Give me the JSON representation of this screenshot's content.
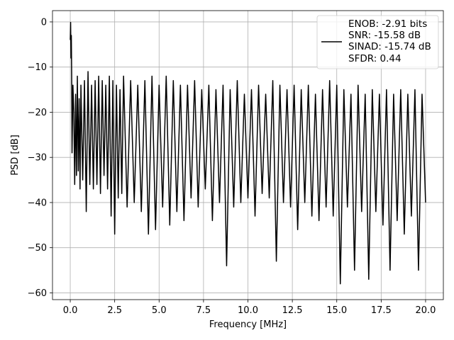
{
  "chart_data": {
    "type": "line",
    "xlabel": "Frequency [MHz]",
    "ylabel": "PSD [dB]",
    "xlim": [
      -1.0,
      21.0
    ],
    "ylim": [
      -61.5,
      2.5
    ],
    "grid": true,
    "legend_placement": "top-right",
    "x_ticks": [
      0.0,
      2.5,
      5.0,
      7.5,
      10.0,
      12.5,
      15.0,
      17.5,
      20.0
    ],
    "x_tick_labels": [
      "0.0",
      "2.5",
      "5.0",
      "7.5",
      "10.0",
      "12.5",
      "15.0",
      "17.5",
      "20.0"
    ],
    "y_ticks": [
      0,
      -10,
      -20,
      -30,
      -40,
      -50,
      -60
    ],
    "y_tick_labels": [
      "0",
      "−10",
      "−20",
      "−30",
      "−40",
      "−50",
      "−60"
    ],
    "series": [
      {
        "color": "#000000",
        "legend_lines": [
          "ENOB: -2.91 bits",
          "SNR: -15.58 dB",
          "SINAD: -15.74 dB",
          "SFDR: 0.44"
        ],
        "x": [
          0.0,
          0.02,
          0.04,
          0.06,
          0.08,
          0.1,
          0.15,
          0.2,
          0.25,
          0.3,
          0.35,
          0.4,
          0.45,
          0.5,
          0.55,
          0.6,
          0.7,
          0.8,
          0.9,
          1.0,
          1.1,
          1.2,
          1.3,
          1.4,
          1.5,
          1.6,
          1.7,
          1.8,
          1.9,
          2.0,
          2.1,
          2.2,
          2.3,
          2.4,
          2.5,
          2.6,
          2.7,
          2.8,
          2.9,
          3.0,
          3.2,
          3.4,
          3.6,
          3.8,
          4.0,
          4.2,
          4.4,
          4.6,
          4.8,
          5.0,
          5.2,
          5.4,
          5.6,
          5.8,
          6.0,
          6.2,
          6.4,
          6.6,
          6.8,
          7.0,
          7.2,
          7.4,
          7.6,
          7.8,
          8.0,
          8.2,
          8.4,
          8.6,
          8.8,
          9.0,
          9.2,
          9.4,
          9.6,
          9.8,
          10.0,
          10.2,
          10.4,
          10.6,
          10.8,
          11.0,
          11.2,
          11.4,
          11.6,
          11.8,
          12.0,
          12.2,
          12.4,
          12.6,
          12.8,
          13.0,
          13.2,
          13.4,
          13.6,
          13.8,
          14.0,
          14.2,
          14.4,
          14.6,
          14.8,
          15.0,
          15.2,
          15.4,
          15.6,
          15.8,
          16.0,
          16.2,
          16.4,
          16.6,
          16.8,
          17.0,
          17.2,
          17.4,
          17.6,
          17.8,
          18.0,
          18.2,
          18.4,
          18.6,
          18.8,
          19.0,
          19.2,
          19.4,
          19.6,
          19.8,
          20.0
        ],
        "y": [
          -4.0,
          -0.1,
          -8.0,
          -3.0,
          -12.0,
          -29.0,
          -14.0,
          -20.0,
          -36.0,
          -16.0,
          -34.0,
          -12.0,
          -33.0,
          -17.0,
          -37.0,
          -14.0,
          -35.0,
          -13.0,
          -42.0,
          -11.0,
          -36.0,
          -14.0,
          -37.0,
          -13.0,
          -36.0,
          -12.0,
          -38.0,
          -13.0,
          -34.0,
          -14.0,
          -37.0,
          -12.0,
          -43.0,
          -13.0,
          -47.0,
          -14.0,
          -39.0,
          -15.0,
          -38.0,
          -12.0,
          -41.0,
          -13.0,
          -40.0,
          -14.0,
          -42.0,
          -13.0,
          -47.0,
          -12.0,
          -46.0,
          -14.0,
          -41.0,
          -12.0,
          -45.0,
          -13.0,
          -42.0,
          -14.0,
          -44.0,
          -14.0,
          -39.0,
          -13.0,
          -41.0,
          -15.0,
          -37.0,
          -14.0,
          -44.0,
          -15.0,
          -40.0,
          -14.0,
          -54.0,
          -15.0,
          -41.0,
          -13.0,
          -40.0,
          -16.0,
          -39.0,
          -15.0,
          -43.0,
          -14.0,
          -38.0,
          -16.0,
          -39.0,
          -13.0,
          -53.0,
          -14.0,
          -40.0,
          -15.0,
          -41.0,
          -14.0,
          -46.0,
          -15.0,
          -40.0,
          -14.0,
          -43.0,
          -16.0,
          -44.0,
          -15.0,
          -41.0,
          -13.0,
          -43.0,
          -14.0,
          -58.0,
          -15.0,
          -41.0,
          -16.0,
          -55.0,
          -14.0,
          -42.0,
          -16.0,
          -57.0,
          -15.0,
          -42.0,
          -16.0,
          -45.0,
          -15.0,
          -55.0,
          -16.0,
          -44.0,
          -15.0,
          -47.0,
          -16.0,
          -43.0,
          -15.0,
          -55.0,
          -16.0,
          -40.0
        ]
      }
    ]
  }
}
